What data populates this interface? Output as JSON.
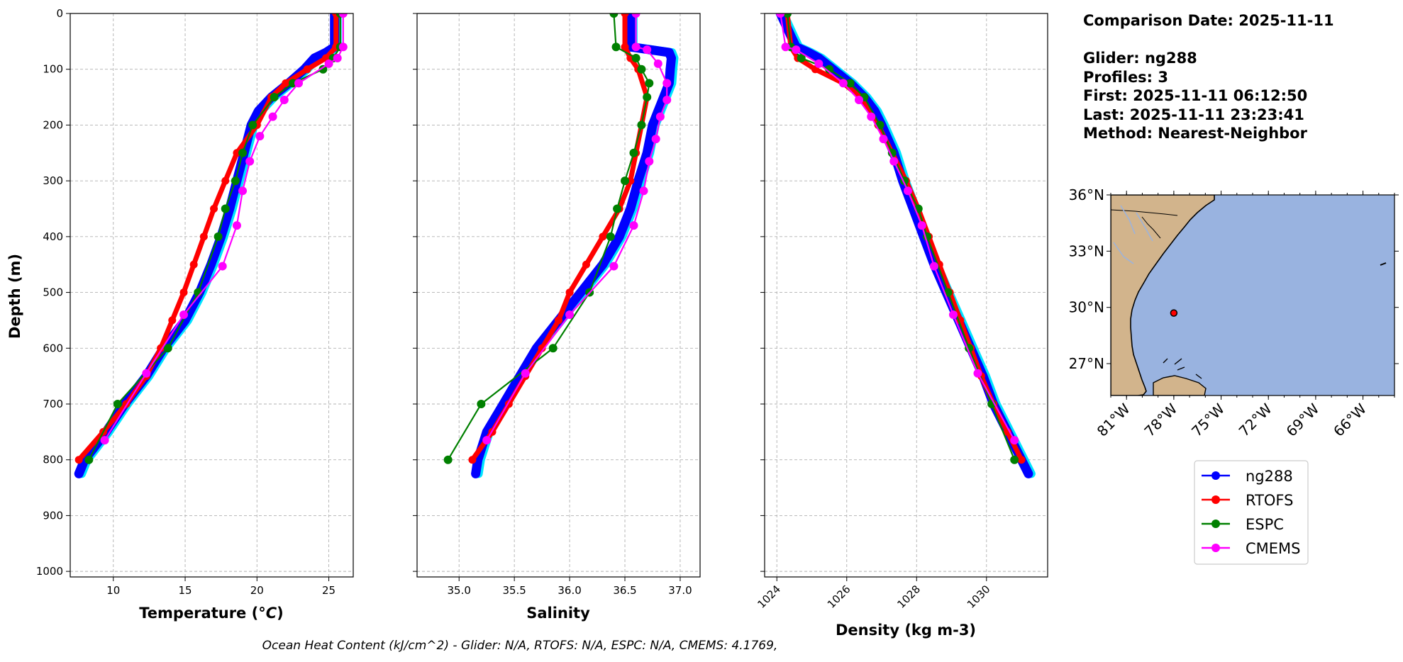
{
  "info": {
    "comparison_date": "Comparison Date: 2025-11-11",
    "glider": "Glider: ng288",
    "profiles": "Profiles: 3",
    "first": "First: 2025-11-11 06:12:50",
    "last": "Last: 2025-11-11 23:23:41",
    "method": "Method: Nearest-Neighbor"
  },
  "footer": "Ocean Heat Content (kJ/cm^2) - Glider: N/A,  RTOFS: N/A,  ESPC: N/A,  CMEMS: 4.1769,",
  "colors": {
    "ng288": "#0000ff",
    "ng288_alt": "#00e5ff",
    "RTOFS": "#ff0000",
    "ESPC": "#008000",
    "CMEMS": "#ff00ff",
    "land": "#d2b48c",
    "ocean": "#99b3e0"
  },
  "map": {
    "lat_labels": [
      "36°N",
      "33°N",
      "30°N",
      "27°N"
    ],
    "lon_labels": [
      "81°W",
      "78°W",
      "75°W",
      "72°W",
      "69°W",
      "66°W"
    ],
    "extent": {
      "lon_min": -82,
      "lon_max": -64,
      "lat_min": 25.3,
      "lat_max": 36
    },
    "glider_position": {
      "lon": -78.0,
      "lat": 29.7
    }
  },
  "chart_data": [
    {
      "type": "line",
      "title": "",
      "xlabel": "Temperature (°C)",
      "ylabel": "Depth (m)",
      "xlim": [
        7.0,
        26.7
      ],
      "ylim": [
        1010,
        0
      ],
      "xticks": [
        "10",
        "15",
        "20",
        "25"
      ],
      "yticks": [
        "0",
        "100",
        "200",
        "300",
        "400",
        "500",
        "600",
        "700",
        "800",
        "900",
        "1000"
      ],
      "depth": [
        0,
        20,
        40,
        60,
        70,
        80,
        100,
        125,
        150,
        175,
        200,
        250,
        300,
        350,
        400,
        450,
        500,
        550,
        600,
        650,
        700,
        750,
        800,
        825
      ],
      "series": [
        {
          "name": "ng288",
          "style": "glider",
          "depth": [
            0,
            20,
            40,
            60,
            70,
            80,
            100,
            125,
            150,
            175,
            200,
            250,
            300,
            350,
            400,
            450,
            500,
            550,
            600,
            650,
            700,
            750,
            800,
            825
          ],
          "values": [
            25.4,
            25.4,
            25.4,
            25.4,
            24.8,
            24.0,
            23.3,
            22.2,
            21.0,
            20.1,
            19.6,
            19.1,
            18.6,
            18.1,
            17.5,
            16.8,
            16.0,
            15.0,
            13.5,
            12.3,
            10.8,
            9.5,
            8.0,
            7.6
          ]
        },
        {
          "name": "RTOFS",
          "depth": [
            0,
            60,
            80,
            100,
            125,
            150,
            200,
            250,
            300,
            350,
            400,
            450,
            500,
            550,
            600,
            650,
            700,
            750,
            800
          ],
          "values": [
            25.5,
            25.5,
            24.8,
            23.5,
            22.0,
            21.0,
            20.0,
            18.6,
            17.8,
            17.0,
            16.3,
            15.6,
            14.9,
            14.1,
            13.3,
            12.3,
            10.9,
            9.3,
            7.6
          ]
        },
        {
          "name": "ESPC",
          "depth": [
            0,
            60,
            80,
            100,
            125,
            150,
            200,
            250,
            300,
            350,
            400,
            500,
            600,
            700,
            800
          ],
          "values": [
            25.8,
            25.8,
            25.3,
            24.6,
            22.5,
            21.2,
            19.7,
            19.0,
            18.5,
            17.8,
            17.3,
            15.9,
            13.8,
            10.3,
            8.3
          ]
        },
        {
          "name": "CMEMS",
          "depth": [
            0,
            60,
            80,
            90,
            125,
            155,
            185,
            220,
            265,
            318,
            380,
            453,
            540,
            645,
            765
          ],
          "values": [
            26.0,
            26.0,
            25.6,
            25.0,
            22.9,
            21.9,
            21.1,
            20.2,
            19.5,
            19.0,
            18.6,
            17.6,
            14.9,
            12.3,
            9.4
          ]
        }
      ]
    },
    {
      "type": "line",
      "title": "",
      "xlabel": "Salinity",
      "ylabel": "",
      "xlim": [
        34.62,
        37.18
      ],
      "ylim": [
        1010,
        0
      ],
      "xticks": [
        "35.0",
        "35.5",
        "36.0",
        "36.5",
        "37.0"
      ],
      "yticks": [],
      "series": [
        {
          "name": "ng288",
          "style": "glider",
          "depth": [
            0,
            20,
            40,
            60,
            70,
            80,
            100,
            125,
            150,
            175,
            200,
            250,
            300,
            350,
            400,
            450,
            500,
            550,
            600,
            650,
            700,
            750,
            800,
            825
          ],
          "values": [
            36.55,
            36.55,
            36.55,
            36.55,
            36.9,
            36.92,
            36.91,
            36.9,
            36.85,
            36.8,
            36.75,
            36.7,
            36.62,
            36.55,
            36.45,
            36.3,
            36.1,
            35.9,
            35.7,
            35.55,
            35.4,
            35.25,
            35.17,
            35.15
          ]
        },
        {
          "name": "RTOFS",
          "depth": [
            0,
            60,
            80,
            100,
            150,
            200,
            250,
            300,
            350,
            400,
            450,
            500,
            550,
            600,
            650,
            700,
            750,
            800
          ],
          "values": [
            36.5,
            36.5,
            36.55,
            36.62,
            36.7,
            36.65,
            36.6,
            36.55,
            36.45,
            36.3,
            36.15,
            36.0,
            35.9,
            35.75,
            35.6,
            35.45,
            35.3,
            35.12
          ]
        },
        {
          "name": "ESPC",
          "depth": [
            0,
            60,
            80,
            100,
            125,
            150,
            200,
            250,
            300,
            350,
            400,
            500,
            600,
            700,
            800
          ],
          "values": [
            36.4,
            36.42,
            36.6,
            36.65,
            36.72,
            36.7,
            36.65,
            36.58,
            36.5,
            36.43,
            36.37,
            36.18,
            35.85,
            35.2,
            34.9
          ]
        },
        {
          "name": "CMEMS",
          "depth": [
            0,
            60,
            65,
            90,
            125,
            155,
            185,
            225,
            265,
            318,
            380,
            453,
            540,
            645,
            765
          ],
          "values": [
            36.6,
            36.6,
            36.7,
            36.8,
            36.88,
            36.88,
            36.82,
            36.78,
            36.72,
            36.67,
            36.58,
            36.4,
            36.0,
            35.6,
            35.25
          ]
        }
      ]
    },
    {
      "type": "line",
      "title": "",
      "xlabel": "Density (kg m-3)",
      "ylabel": "",
      "xlim": [
        1023.65,
        1031.75
      ],
      "ylim": [
        1010,
        0
      ],
      "xticks": [
        "1024",
        "1026",
        "1028",
        "1030"
      ],
      "yticks": [],
      "series": [
        {
          "name": "ng288",
          "style": "glider",
          "depth": [
            0,
            20,
            40,
            60,
            70,
            80,
            100,
            125,
            150,
            175,
            200,
            250,
            300,
            350,
            400,
            450,
            500,
            550,
            600,
            650,
            700,
            750,
            800,
            825
          ],
          "values": [
            1024.1,
            1024.25,
            1024.4,
            1024.55,
            1024.9,
            1025.2,
            1025.6,
            1026.1,
            1026.5,
            1026.8,
            1027.0,
            1027.35,
            1027.6,
            1027.9,
            1028.2,
            1028.5,
            1028.85,
            1029.2,
            1029.55,
            1029.9,
            1030.2,
            1030.6,
            1031.0,
            1031.2
          ]
        },
        {
          "name": "RTOFS",
          "depth": [
            0,
            60,
            80,
            100,
            125,
            150,
            200,
            250,
            300,
            350,
            400,
            450,
            500,
            550,
            600,
            650,
            700,
            750,
            800
          ],
          "values": [
            1024.3,
            1024.4,
            1024.6,
            1025.1,
            1025.9,
            1026.4,
            1026.9,
            1027.3,
            1027.7,
            1028.05,
            1028.35,
            1028.65,
            1028.95,
            1029.25,
            1029.55,
            1029.85,
            1030.2,
            1030.6,
            1031.0
          ]
        },
        {
          "name": "ESPC",
          "depth": [
            0,
            60,
            80,
            100,
            125,
            150,
            200,
            250,
            300,
            350,
            400,
            500,
            600,
            700,
            800
          ],
          "values": [
            1024.3,
            1024.4,
            1024.7,
            1025.5,
            1026.1,
            1026.5,
            1026.95,
            1027.3,
            1027.65,
            1028.05,
            1028.3,
            1028.9,
            1029.5,
            1030.15,
            1030.8
          ]
        },
        {
          "name": "CMEMS",
          "depth": [
            0,
            60,
            65,
            90,
            125,
            155,
            185,
            225,
            265,
            318,
            380,
            453,
            540,
            645,
            765
          ],
          "values": [
            1024.1,
            1024.25,
            1024.55,
            1025.2,
            1025.9,
            1026.35,
            1026.7,
            1027.05,
            1027.35,
            1027.75,
            1028.15,
            1028.5,
            1029.05,
            1029.75,
            1030.8
          ]
        }
      ]
    }
  ]
}
